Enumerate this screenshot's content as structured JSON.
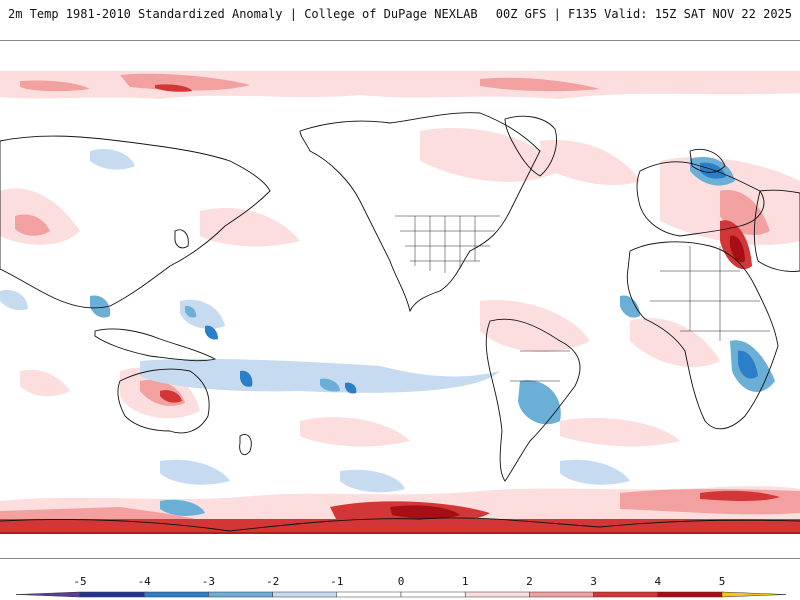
{
  "header": {
    "title_left": "2m Temp 1981-2010 Standardized Anomaly | College of DuPage NEXLAB",
    "title_right": "00Z GFS | F135 Valid: 15Z SAT NOV 22 2025"
  },
  "map": {
    "product": "2m Temp Standardized Anomaly",
    "projection": "global-equirectangular-pacific-centered"
  },
  "colorbar": {
    "ticks": [
      "-5",
      "-4",
      "-3",
      "-2",
      "-1",
      "0",
      "1",
      "2",
      "3",
      "4",
      "5"
    ],
    "bins": [
      {
        "from": -6,
        "to": -5,
        "color": "#5e3c99"
      },
      {
        "from": -5,
        "to": -4,
        "color": "#253494"
      },
      {
        "from": -4,
        "to": -3,
        "color": "#2b7ec8"
      },
      {
        "from": -3,
        "to": -2,
        "color": "#6baed6"
      },
      {
        "from": -2,
        "to": -1,
        "color": "#c6dbef"
      },
      {
        "from": -1,
        "to": 0,
        "color": "#ffffff"
      },
      {
        "from": 0,
        "to": 1,
        "color": "#ffffff"
      },
      {
        "from": 1,
        "to": 2,
        "color": "#fcdede"
      },
      {
        "from": 2,
        "to": 3,
        "color": "#f2a0a0"
      },
      {
        "from": 3,
        "to": 4,
        "color": "#d33636"
      },
      {
        "from": 4,
        "to": 5,
        "color": "#a50f15"
      },
      {
        "from": 5,
        "to": 6,
        "color": "#f5c518"
      }
    ],
    "colors": {
      "strong_warm": "#a50f15",
      "warm": "#d33636",
      "mild_warm": "#f2a0a0",
      "slight_warm": "#fcdede",
      "slight_cold": "#c6dbef",
      "cold": "#6baed6",
      "strong_cold": "#2b7ec8",
      "coast": "#111111"
    }
  }
}
